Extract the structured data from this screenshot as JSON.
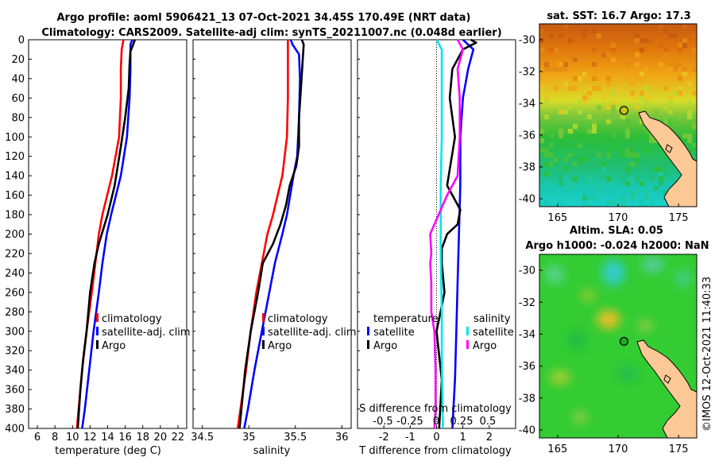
{
  "title": {
    "line1": "Argo profile: aoml 5906421_13 07-Oct-2021 34.45S 170.49E (NRT data)",
    "line2": "Climatology: CARS2009. Satellite-adj clim: synTS_20211007.nc (0.048d earlier)"
  },
  "watermark": "©IMOS 12-Oct-2021 11:40:33",
  "chart_data": [
    {
      "id": "temperature",
      "type": "line",
      "xlabel": "temperature (deg C)",
      "xlim": [
        5,
        23
      ],
      "xticks": [
        6,
        8,
        10,
        12,
        14,
        16,
        18,
        20,
        22
      ],
      "ylim": [
        0,
        400
      ],
      "yticks": [
        0,
        20,
        40,
        60,
        80,
        100,
        120,
        140,
        160,
        180,
        200,
        220,
        240,
        260,
        280,
        300,
        320,
        340,
        360,
        380,
        400
      ],
      "legend": [
        "climatology",
        "satellite-adj. clim",
        "Argo"
      ],
      "series": [
        {
          "name": "climatology",
          "color": "#ff0000",
          "depth": [
            0,
            10,
            30,
            60,
            100,
            140,
            180,
            200,
            230,
            260,
            300,
            340,
            380,
            400
          ],
          "values": [
            15.8,
            15.6,
            15.5,
            15.5,
            15.3,
            14.5,
            13.4,
            13.0,
            12.6,
            12.2,
            11.6,
            11.1,
            10.7,
            10.5
          ]
        },
        {
          "name": "satellite-adj. clim",
          "color": "#0000ff",
          "depth": [
            0,
            5,
            30,
            60,
            100,
            140,
            180,
            200,
            230,
            260,
            300,
            340,
            380,
            400
          ],
          "values": [
            16.8,
            16.6,
            16.6,
            16.5,
            16.2,
            15.5,
            14.4,
            13.9,
            13.4,
            13.0,
            12.4,
            11.9,
            11.4,
            11.1
          ]
        },
        {
          "name": "Argo",
          "color": "#000000",
          "depth": [
            0,
            5,
            12,
            25,
            50,
            80,
            110,
            150,
            180,
            210,
            230,
            260,
            300,
            330,
            360,
            400
          ],
          "values": [
            17.1,
            16.9,
            16.6,
            16.5,
            16.4,
            16.0,
            15.5,
            14.8,
            14.0,
            13.0,
            12.5,
            12.0,
            11.6,
            11.2,
            10.9,
            10.6
          ]
        }
      ]
    },
    {
      "id": "salinity",
      "type": "line",
      "xlabel": "salinity",
      "xlim": [
        34.4,
        36.1
      ],
      "xticks": [
        34.5,
        35,
        35.5,
        36
      ],
      "xtick_labels": [
        "34.5",
        "35",
        "35.5",
        "36"
      ],
      "ylim": [
        0,
        400
      ],
      "legend": [
        "climatology",
        "satellite-adj. clim",
        "Argo"
      ],
      "series": [
        {
          "name": "climatology",
          "color": "#ff0000",
          "depth": [
            0,
            20,
            60,
            100,
            140,
            180,
            200,
            230,
            260,
            300,
            340,
            380,
            400
          ],
          "values": [
            35.42,
            35.42,
            35.42,
            35.41,
            35.36,
            35.26,
            35.2,
            35.14,
            35.08,
            35.02,
            34.97,
            34.91,
            34.88
          ]
        },
        {
          "name": "satellite-adj. clim",
          "color": "#0000ff",
          "depth": [
            0,
            5,
            15,
            40,
            80,
            120,
            140,
            180,
            200,
            230,
            260,
            300,
            340,
            380,
            400
          ],
          "values": [
            35.45,
            35.47,
            35.54,
            35.55,
            35.54,
            35.52,
            35.48,
            35.41,
            35.36,
            35.28,
            35.22,
            35.14,
            35.06,
            34.99,
            34.95
          ]
        },
        {
          "name": "Argo",
          "color": "#000000",
          "depth": [
            0,
            5,
            20,
            50,
            80,
            110,
            130,
            150,
            170,
            190,
            210,
            230,
            260,
            300,
            340,
            380,
            400
          ],
          "values": [
            35.57,
            35.59,
            35.58,
            35.56,
            35.54,
            35.54,
            35.51,
            35.44,
            35.4,
            35.34,
            35.26,
            35.15,
            35.1,
            35.02,
            34.96,
            34.92,
            34.9
          ]
        }
      ]
    },
    {
      "id": "difference",
      "type": "line",
      "xlabel": "T difference from climatology",
      "xlim": [
        -3,
        3
      ],
      "xticks": [
        -2,
        -1,
        0,
        1,
        2
      ],
      "secondary_label": "S difference from climatology",
      "secondary_ticks": [
        "-0.5",
        "-0.25",
        "0",
        "0.25",
        "0.5"
      ],
      "ylim": [
        0,
        400
      ],
      "legend_left_title": "temperature",
      "legend_right_title": "salinity",
      "legend": [
        "satellite",
        "Argo",
        "satellite",
        "Argo"
      ],
      "series": [
        {
          "name": "T satellite",
          "color": "#0000ff",
          "depth": [
            0,
            10,
            30,
            60,
            100,
            150,
            200,
            250,
            300,
            350,
            400
          ],
          "values": [
            1.0,
            1.4,
            1.2,
            1.0,
            0.9,
            0.9,
            0.85,
            0.8,
            0.75,
            0.7,
            0.6
          ]
        },
        {
          "name": "T Argo",
          "color": "#000000",
          "depth": [
            0,
            3,
            10,
            30,
            60,
            100,
            150,
            175,
            190,
            200,
            215,
            230,
            260,
            300,
            350,
            400
          ],
          "values": [
            1.3,
            1.5,
            1.0,
            0.6,
            0.5,
            0.7,
            0.4,
            0.9,
            0.8,
            0.4,
            0.2,
            0.2,
            0.3,
            0.0,
            0.2,
            0.1
          ]
        },
        {
          "name": "S satellite",
          "color": "#00e5ee",
          "depth": [
            0,
            10,
            40,
            100,
            150,
            220,
            280,
            330,
            400
          ],
          "values": [
            0.0,
            0.05,
            0.05,
            0.05,
            0.04,
            0.04,
            0.05,
            0.05,
            0.06
          ]
        },
        {
          "name": "S Argo",
          "color": "#ff00ff",
          "depth": [
            0,
            10,
            30,
            60,
            100,
            140,
            160,
            200,
            220,
            230,
            250,
            280,
            300,
            340,
            380,
            400
          ],
          "values": [
            0.2,
            0.25,
            0.2,
            0.22,
            0.22,
            0.2,
            0.1,
            -0.06,
            -0.05,
            -0.06,
            -0.05,
            -0.05,
            -0.02,
            -0.01,
            -0.01,
            -0.02
          ]
        }
      ]
    },
    {
      "id": "sst-map",
      "type": "heatmap",
      "title": "sat. SST: 16.7 Argo: 17.3",
      "xticks": [
        165,
        170,
        175
      ],
      "yticks": [
        -30,
        -32,
        -34,
        -36,
        -38,
        -40
      ],
      "lon_range": [
        163.5,
        176.5
      ],
      "lat_range": [
        -40.5,
        -29
      ],
      "argo_position": {
        "lon": 170.49,
        "lat": -34.45
      }
    },
    {
      "id": "sla-map",
      "type": "heatmap",
      "title_line1": "Altim. SLA: 0.05",
      "title_line2": "Argo h1000: -0.024 h2000: NaN",
      "xticks": [
        165,
        170,
        175
      ],
      "yticks": [
        -30,
        -32,
        -34,
        -36,
        -38,
        -40
      ],
      "lon_range": [
        163.5,
        176.5
      ],
      "lat_range": [
        -40.5,
        -29
      ],
      "argo_position": {
        "lon": 170.49,
        "lat": -34.45
      }
    }
  ]
}
